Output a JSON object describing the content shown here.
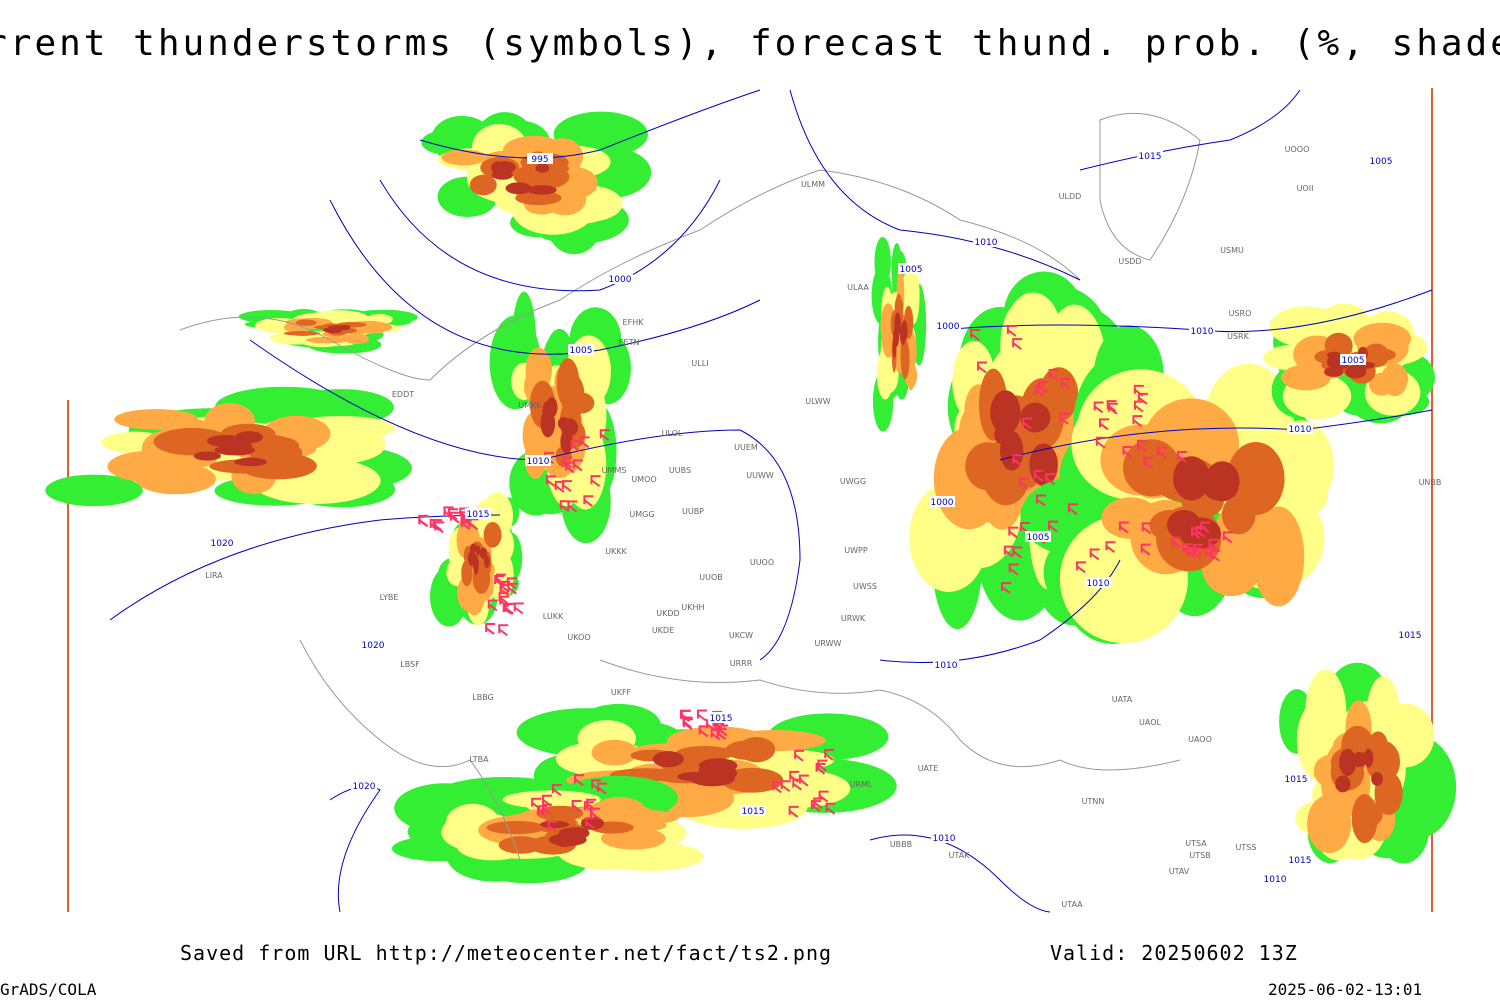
{
  "header": {
    "title": "Current thunderstorms (symbols), forecast thund. prob. (%, shaded)"
  },
  "isobar_labels": [
    "995",
    "1000",
    "1005",
    "1010",
    "1015",
    "1020",
    "1020",
    "1020",
    "1015",
    "1015",
    "1010",
    "1005",
    "1010",
    "1015",
    "1005",
    "1000",
    "1010",
    "1005",
    "1010",
    "1000",
    "1005",
    "1010",
    "1010",
    "1015",
    "1015",
    "1015",
    "1010"
  ],
  "stations": [
    "ULMM",
    "ULDD",
    "UOII",
    "UOOO",
    "USMU",
    "USDD",
    "ULAA",
    "USRO",
    "USRK",
    "EFHK",
    "EETN",
    "ULLI",
    "EDDT",
    "UMKK",
    "ULWW",
    "ULOL",
    "UUEM",
    "UMMS",
    "UMOO",
    "UUBS",
    "UUWW",
    "UWGG",
    "UMGG",
    "UUBP",
    "UKKK",
    "UWPP",
    "UUOO",
    "UUOB",
    "UWSS",
    "LIRA",
    "LYBE",
    "UKHH",
    "UKDD",
    "UKDE",
    "URWK",
    "UKOO",
    "UKCW",
    "URWW",
    "LUKK",
    "LBSF",
    "URRR",
    "UKFF",
    "LBBG",
    "UATA",
    "UAOL",
    "UAOO",
    "UATE",
    "LTBA",
    "URML",
    "UTNN",
    "UBBB",
    "UTAK",
    "UTSA",
    "UTSS",
    "UTSB",
    "UTAV",
    "UTAA",
    "UNBB"
  ],
  "footer": {
    "saved": "Saved from URL http://meteocenter.net/fact/ts2.png",
    "valid": "Valid: 20250602 13Z",
    "software": "GrADS/COLA",
    "timestamp": "2025-06-02-13:01"
  }
}
